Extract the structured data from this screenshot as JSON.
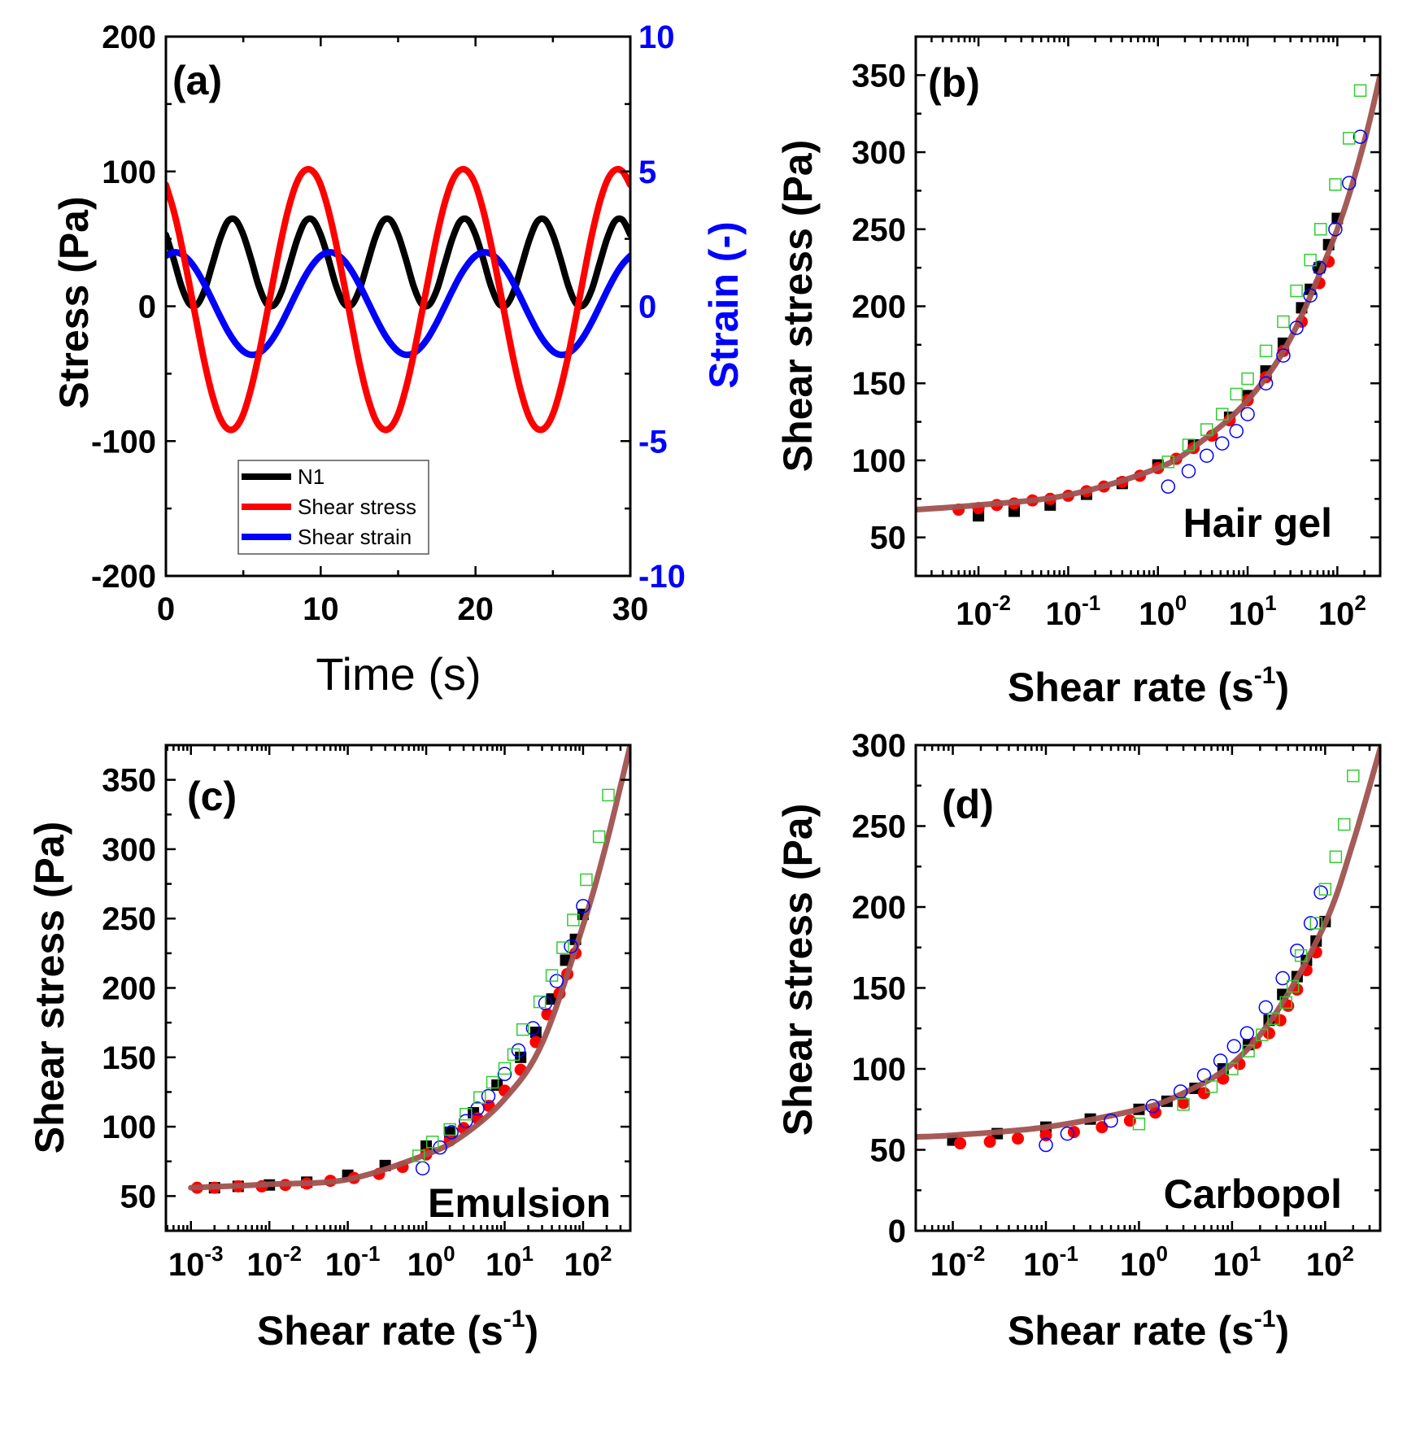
{
  "chart_data": [
    {
      "type": "line",
      "panel_label": "(a)",
      "xlabel": "Time (s)",
      "ylabel": "Stress (Pa)",
      "y2label": "Strain (-)",
      "xscale": "linear",
      "xlim": [
        0,
        30
      ],
      "ylim": [
        -200,
        200
      ],
      "y2lim": [
        -10,
        10
      ],
      "xticks": [
        0,
        10,
        20,
        30
      ],
      "xminor": [
        5,
        15,
        25
      ],
      "yticks": [
        -200,
        -100,
        0,
        100,
        200
      ],
      "yminor": [
        -150,
        -50,
        50,
        150
      ],
      "y2ticks": [
        -10,
        -5,
        0,
        5,
        10
      ],
      "legend_position": "bottom-left",
      "grid": false,
      "x": [
        0,
        0.5,
        1,
        1.5,
        2,
        2.5,
        3,
        3.5,
        4,
        4.5,
        5,
        5.5,
        6,
        6.5,
        7,
        7.5,
        8,
        8.5,
        9,
        9.5,
        10,
        10.5,
        11,
        11.5,
        12,
        12.5,
        13,
        13.5,
        14,
        14.5,
        15,
        15.5,
        16,
        16.5,
        17,
        17.5,
        18,
        18.5,
        19,
        19.5,
        20,
        20.5,
        21,
        21.5,
        22,
        22.5,
        23,
        23.5,
        24,
        24.5,
        25,
        25.5,
        26,
        26.5,
        27,
        27.5,
        28,
        28.5,
        29,
        29.5,
        30
      ],
      "series": [
        {
          "name": "N1",
          "axis": "left",
          "color": "#000000",
          "style": "line",
          "values": [
            53,
            35,
            15,
            2,
            1,
            12,
            31,
            50,
            63,
            64,
            53,
            35,
            15,
            2,
            1,
            12,
            31,
            50,
            63,
            64,
            53,
            35,
            15,
            2,
            1,
            12,
            31,
            50,
            63,
            64,
            53,
            35,
            15,
            2,
            1,
            12,
            31,
            50,
            63,
            64,
            53,
            35,
            15,
            2,
            1,
            12,
            31,
            50,
            63,
            64,
            53,
            35,
            15,
            2,
            1,
            12,
            31,
            50,
            63,
            64,
            53
          ]
        },
        {
          "name": "Shear strain",
          "axis": "right",
          "color": "#0000ff",
          "style": "line",
          "values": [
            1.87,
            2.0,
            1.94,
            1.7,
            1.31,
            0.8,
            0.22,
            -0.37,
            -0.92,
            -1.36,
            -1.67,
            -1.8,
            -1.74,
            -1.5,
            -1.11,
            -0.6,
            -0.02,
            0.57,
            1.12,
            1.56,
            1.87,
            2.0,
            1.94,
            1.7,
            1.31,
            0.8,
            0.22,
            -0.37,
            -0.92,
            -1.36,
            -1.67,
            -1.8,
            -1.74,
            -1.5,
            -1.11,
            -0.6,
            -0.02,
            0.57,
            1.12,
            1.56,
            1.87,
            2.0,
            1.94,
            1.7,
            1.31,
            0.8,
            0.22,
            -0.37,
            -0.92,
            -1.36,
            -1.67,
            -1.8,
            -1.74,
            -1.5,
            -1.11,
            -0.6,
            -0.02,
            0.57,
            1.12,
            1.56,
            1.87
          ]
        },
        {
          "name": "Shear stress",
          "axis": "left",
          "color": "#ff0000",
          "style": "line",
          "values": [
            90,
            71,
            46,
            17,
            -13,
            -42,
            -66,
            -83,
            -91,
            -90,
            -80,
            -61,
            -36,
            -7,
            23,
            52,
            76,
            93,
            101,
            100,
            90,
            71,
            46,
            17,
            -13,
            -42,
            -66,
            -83,
            -91,
            -90,
            -80,
            -61,
            -36,
            -7,
            23,
            52,
            76,
            93,
            101,
            100,
            90,
            71,
            46,
            17,
            -13,
            -42,
            -66,
            -83,
            -91,
            -90,
            -80,
            -61,
            -36,
            -7,
            23,
            52,
            76,
            93,
            101,
            100,
            90
          ]
        }
      ],
      "legend_order": [
        "N1",
        "Shear stress",
        "Shear strain"
      ]
    },
    {
      "type": "scatter",
      "panel_label": "(b)",
      "annotation": "Hair gel",
      "xlabel": "Shear rate (s",
      "xlabel_sup": "-1",
      "xlabel_end": ")",
      "ylabel": "Shear stress (Pa)",
      "xscale": "log",
      "xlim": [
        0.002,
        300
      ],
      "ylim": [
        25,
        375
      ],
      "xticks_exp": [
        "-2",
        "-1",
        "0",
        "1",
        "2"
      ],
      "yticks": [
        50,
        100,
        150,
        200,
        250,
        300,
        350
      ],
      "yminor_step": 25,
      "grid": false,
      "series": [
        {
          "style": "filled-square",
          "color": "#000000",
          "x": [
            0.01,
            0.025,
            0.063,
            0.16,
            0.4,
            1,
            2.5,
            6.3,
            10,
            16,
            25,
            40,
            50,
            63,
            80,
            100
          ],
          "y": [
            64,
            67,
            71,
            78,
            85,
            97,
            110,
            128,
            142,
            158,
            176,
            199,
            211,
            225,
            240,
            257
          ]
        },
        {
          "style": "filled-circle",
          "color": "#ff0000",
          "x": [
            0.006,
            0.01,
            0.016,
            0.025,
            0.04,
            0.063,
            0.1,
            0.16,
            0.25,
            0.4,
            0.63,
            1,
            1.6,
            2.5,
            4,
            6.3,
            10,
            16,
            25,
            40,
            63,
            80
          ],
          "y": [
            68,
            69,
            71,
            72,
            74,
            75,
            77,
            80,
            83,
            86,
            90,
            95,
            101,
            108,
            116,
            126,
            139,
            154,
            171,
            190,
            215,
            229
          ]
        },
        {
          "style": "fit-line",
          "color": "#a0524f",
          "x": [
            0.002,
            0.01,
            0.1,
            1,
            3,
            10,
            30,
            100,
            200,
            300
          ],
          "y": [
            68,
            71,
            77.5,
            95,
            112,
            139,
            179,
            250,
            307,
            350
          ]
        },
        {
          "style": "open-circle",
          "color": "#0000ff",
          "x": [
            1.3,
            2.2,
            3.5,
            5.2,
            7.5,
            10,
            16,
            25,
            35,
            50,
            63,
            95,
            135,
            180
          ],
          "y": [
            83,
            93,
            103,
            111,
            119,
            130,
            150,
            168,
            186,
            207,
            225,
            250,
            280,
            310
          ]
        },
        {
          "style": "open-square",
          "color": "#33cc33",
          "x": [
            1.3,
            2.2,
            3.5,
            5.2,
            7.5,
            10,
            16,
            25,
            35,
            50,
            65,
            95,
            135,
            180
          ],
          "y": [
            99,
            110,
            120,
            130,
            143,
            153,
            171,
            190,
            210,
            230,
            250,
            279,
            309,
            340
          ]
        }
      ]
    },
    {
      "type": "scatter",
      "panel_label": "(c)",
      "annotation": "Emulsion",
      "xlabel": "Shear rate (s",
      "xlabel_sup": "-1",
      "xlabel_end": ")",
      "ylabel": "Shear stress (Pa)",
      "xscale": "log",
      "xlim": [
        0.00048,
        400
      ],
      "ylim": [
        25,
        375
      ],
      "xticks_exp": [
        "-3",
        "-2",
        "-1",
        "0",
        "1",
        "2"
      ],
      "yticks": [
        50,
        100,
        150,
        200,
        250,
        300,
        350
      ],
      "yminor_step": 25,
      "grid": false,
      "series": [
        {
          "style": "filled-square",
          "color": "#000000",
          "x": [
            0.002,
            0.004,
            0.01,
            0.03,
            0.1,
            0.3,
            1,
            2,
            4,
            8,
            16,
            25,
            40,
            60,
            80,
            100
          ],
          "y": [
            56,
            57,
            58,
            60,
            65,
            72,
            86,
            96,
            110,
            130,
            150,
            168,
            192,
            220,
            235,
            253
          ]
        },
        {
          "style": "filled-circle",
          "color": "#ff0000",
          "x": [
            0.0012,
            0.002,
            0.004,
            0.008,
            0.016,
            0.03,
            0.06,
            0.12,
            0.25,
            0.5,
            1,
            2,
            3,
            4.5,
            6.3,
            10,
            16,
            25,
            35,
            50,
            63,
            80
          ],
          "y": [
            56,
            56,
            57,
            57,
            58,
            59,
            61,
            63,
            66,
            71,
            80,
            90,
            99,
            106,
            115,
            126,
            141,
            161,
            181,
            196,
            210,
            225
          ]
        },
        {
          "style": "fit-line",
          "color": "#a0524f",
          "x": [
            0.001,
            0.01,
            0.1,
            1,
            3,
            10,
            30,
            100,
            200,
            400
          ],
          "y": [
            56,
            58.5,
            62,
            80,
            94,
            120,
            160,
            245,
            305,
            375
          ]
        },
        {
          "style": "open-circle",
          "color": "#0000ff",
          "x": [
            0.9,
            1.5,
            2.1,
            3.2,
            4.5,
            6.2,
            10,
            15,
            23,
            33,
            46,
            70,
            100
          ],
          "y": [
            70,
            85,
            96,
            104,
            113,
            122,
            138,
            155,
            171,
            189,
            205,
            230,
            259
          ]
        },
        {
          "style": "open-square",
          "color": "#33cc33",
          "x": [
            0.8,
            1.2,
            2,
            3.2,
            4.8,
            7,
            10,
            13,
            17,
            28,
            40,
            55,
            75,
            110,
            160,
            210
          ],
          "y": [
            79,
            89,
            98,
            109,
            121,
            132,
            142,
            152,
            170,
            190,
            209,
            229,
            249,
            278,
            309,
            339
          ]
        }
      ]
    },
    {
      "type": "scatter",
      "panel_label": "(d)",
      "annotation": "Carbopol",
      "xlabel": "Shear rate (s",
      "xlabel_sup": "-1",
      "xlabel_end": ")",
      "ylabel": "Shear stress (Pa)",
      "xscale": "log",
      "xlim": [
        0.004,
        390
      ],
      "ylim": [
        0,
        300
      ],
      "xticks_exp": [
        "-2",
        "-1",
        "0",
        "1",
        "2"
      ],
      "yticks": [
        0,
        50,
        100,
        150,
        200,
        250,
        300
      ],
      "yminor_step": 25,
      "grid": false,
      "series": [
        {
          "style": "filled-square",
          "color": "#000000",
          "x": [
            0.01,
            0.03,
            0.1,
            0.3,
            1,
            2,
            4,
            8,
            15,
            25,
            35,
            50,
            63,
            80,
            100
          ],
          "y": [
            56,
            60,
            64,
            69,
            75,
            80,
            88,
            100,
            115,
            130,
            146,
            157,
            167,
            179,
            191
          ]
        },
        {
          "style": "filled-circle",
          "color": "#ff0000",
          "x": [
            0.012,
            0.025,
            0.05,
            0.1,
            0.2,
            0.4,
            0.8,
            1.5,
            3,
            5,
            8,
            12,
            18,
            25,
            33,
            40,
            50,
            63,
            80
          ],
          "y": [
            54,
            55,
            57,
            59,
            61,
            64,
            68,
            73,
            79,
            85,
            94,
            103,
            116,
            122,
            130,
            139,
            149,
            161,
            172
          ]
        },
        {
          "style": "fit-line",
          "color": "#a0524f",
          "x": [
            0.004,
            0.01,
            0.1,
            1,
            3,
            10,
            30,
            100,
            200,
            400
          ],
          "y": [
            58,
            59,
            64,
            75,
            85,
            103,
            135,
            190,
            240,
            300
          ]
        },
        {
          "style": "open-circle",
          "color": "#0000ff",
          "x": [
            0.1,
            0.17,
            0.5,
            1.4,
            2.8,
            5,
            7.5,
            10.5,
            14.5,
            23,
            35,
            50,
            70,
            90
          ],
          "y": [
            53,
            60,
            68,
            77,
            86,
            96,
            105,
            114,
            122,
            138,
            156,
            173,
            190,
            209
          ]
        },
        {
          "style": "open-square",
          "color": "#33cc33",
          "x": [
            1,
            3,
            6,
            10,
            15,
            21,
            28,
            38,
            45,
            55,
            80,
            100,
            130,
            160,
            200
          ],
          "y": [
            66,
            78,
            89,
            100,
            111,
            121,
            131,
            141,
            151,
            170,
            190,
            211,
            231,
            251,
            281
          ]
        }
      ]
    }
  ]
}
